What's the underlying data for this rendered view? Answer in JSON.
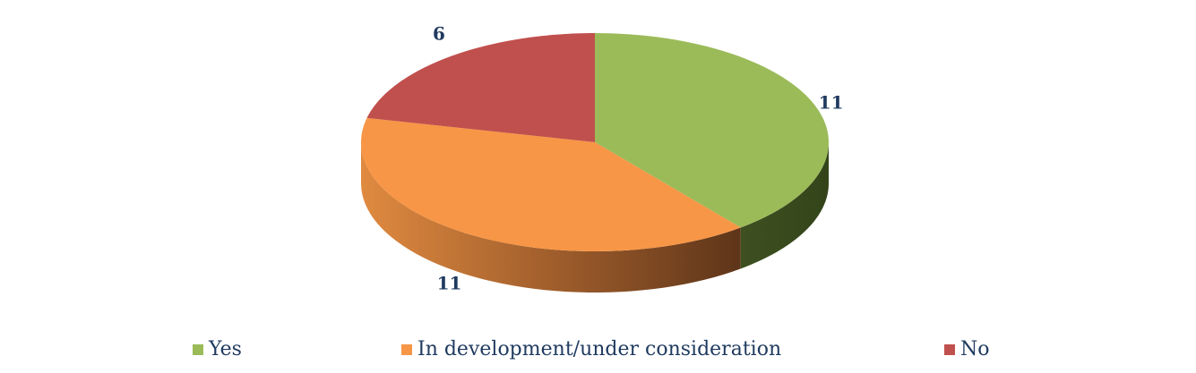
{
  "chart_data": {
    "type": "pie",
    "style": "3d",
    "categories": [
      "Yes",
      "In development/under consideration",
      "No"
    ],
    "values": [
      11,
      11,
      6
    ],
    "data_labels": [
      "11",
      "11",
      "6"
    ],
    "colors": [
      "#9BBB59",
      "#F79646",
      "#C0504D"
    ],
    "title": "",
    "legend": {
      "position": "bottom",
      "entries": [
        "Yes",
        "In development/under consideration",
        "No"
      ]
    }
  }
}
